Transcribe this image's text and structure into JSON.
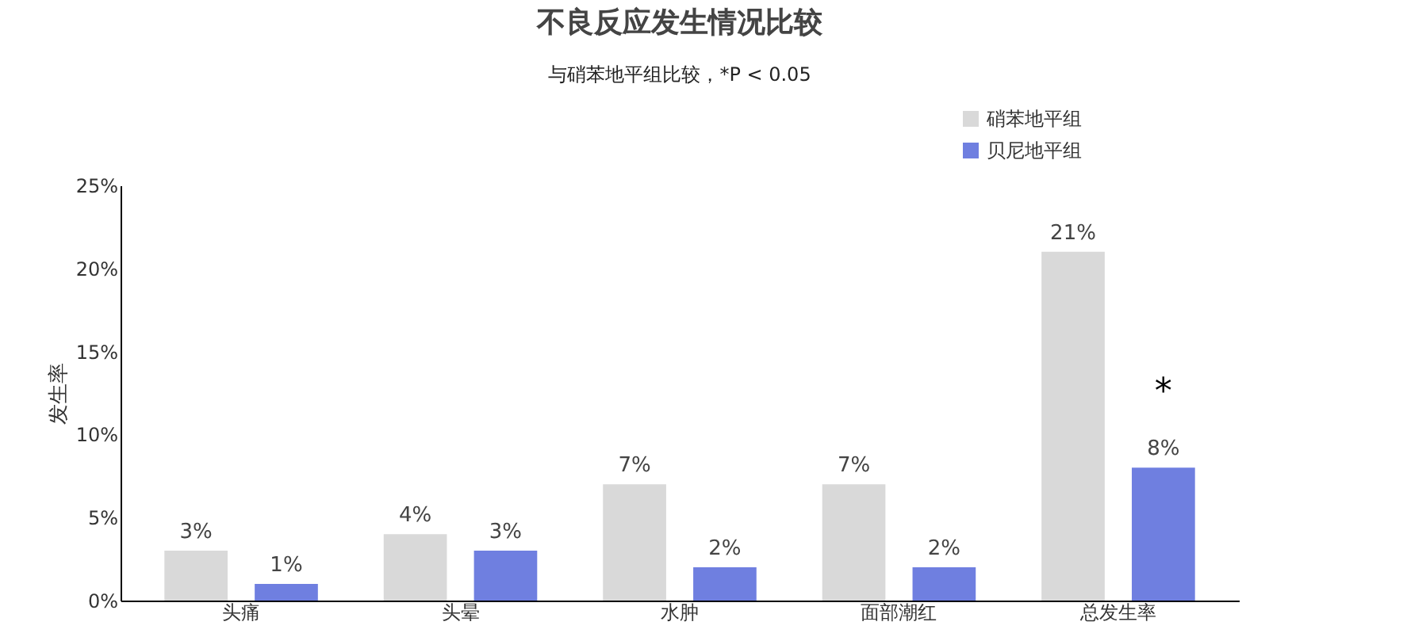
{
  "chart_data": {
    "type": "bar",
    "title": "不良反应发生情况比较",
    "subtitle": "与硝苯地平组比较，*P < 0.05",
    "ylabel": "发生率",
    "categories": [
      "头痛",
      "头晕",
      "水肿",
      "面部潮红",
      "总发生率"
    ],
    "series": [
      {
        "name": "硝苯地平组",
        "color": "#d9d9d9",
        "values": [
          3,
          4,
          7,
          7,
          21
        ],
        "value_labels": [
          "3%",
          "4%",
          "7%",
          "7%",
          "21%"
        ]
      },
      {
        "name": "贝尼地平组",
        "color": "#6f7fe0",
        "values": [
          1,
          3,
          2,
          2,
          8
        ],
        "value_labels": [
          "1%",
          "3%",
          "2%",
          "2%",
          "8%"
        ]
      }
    ],
    "ylim": [
      0,
      25
    ],
    "yticks": [
      {
        "value": 0,
        "label": "0%"
      },
      {
        "value": 5,
        "label": "5%"
      },
      {
        "value": 10,
        "label": "10%"
      },
      {
        "value": 15,
        "label": "15%"
      },
      {
        "value": 20,
        "label": "20%"
      },
      {
        "value": 25,
        "label": "25%"
      }
    ],
    "annotations": [
      "*"
    ],
    "legend": "top right",
    "grid": false
  }
}
